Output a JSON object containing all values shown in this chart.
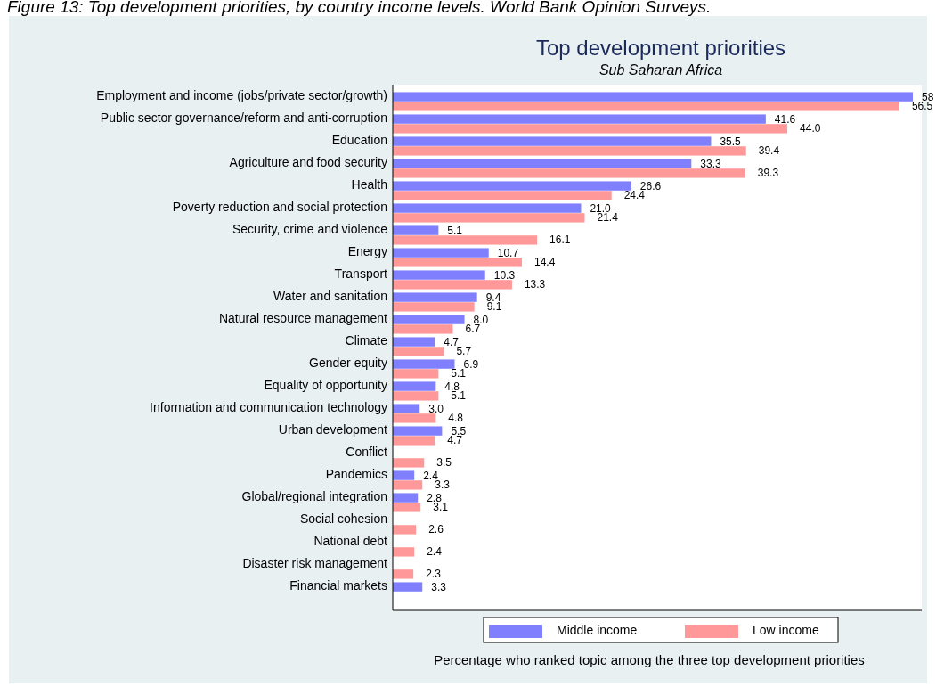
{
  "chart_data": {
    "type": "bar",
    "orientation": "horizontal",
    "title": "Top development priorities",
    "subtitle": "Sub Saharan Africa",
    "xlabel": "Percentage who ranked topic among the three top development priorities",
    "annotations": [
      "Figure 13: Top development priorities, by country income levels. World Bank Opinion Surveys."
    ],
    "legend": "bottom",
    "grid": false,
    "categories": [
      "Employment and income (jobs/private sector/growth)",
      "Public sector governance/reform and anti-corruption",
      "Education",
      "Agriculture and food security",
      "Health",
      "Poverty reduction and social protection",
      "Security, crime and violence",
      "Energy",
      "Transport",
      "Water and sanitation",
      "Natural resource management",
      "Climate",
      "Gender equity",
      "Equality of opportunity",
      "Information and communication technology",
      "Urban development",
      "Conflict",
      "Pandemics",
      "Global/regional integration",
      "Social cohesion",
      "National debt",
      "Disaster risk management",
      "Financial markets"
    ],
    "series": [
      {
        "name": "Middle income",
        "color": "#8080ff",
        "values": [
          58,
          41.6,
          35.5,
          33.3,
          26.6,
          21.0,
          5.1,
          10.7,
          10.3,
          9.4,
          8.0,
          4.7,
          6.9,
          4.8,
          3.0,
          5.5,
          null,
          2.4,
          2.8,
          null,
          null,
          null,
          3.3
        ],
        "value_labels": [
          "58",
          "41.6",
          "35.5",
          "33.3",
          "26.6",
          "21.0",
          "5.1",
          "10.7",
          "10.3",
          "9.4",
          "8.0",
          "4.7",
          "6.9",
          "4.8",
          "3.0",
          "5.5",
          null,
          "2.4",
          "2.8",
          null,
          null,
          null,
          "3.3"
        ]
      },
      {
        "name": "Low income",
        "color": "#ff9999",
        "values": [
          56.5,
          44.0,
          39.4,
          39.3,
          24.4,
          21.4,
          16.1,
          14.4,
          13.3,
          9.1,
          6.7,
          5.7,
          5.1,
          5.1,
          4.8,
          4.7,
          3.5,
          3.3,
          3.1,
          2.6,
          2.4,
          2.3,
          null
        ],
        "value_labels": [
          "56.5",
          "44.0",
          "39.4",
          "39.3",
          "24.4",
          "21.4",
          "16.1",
          "14.4",
          "13.3",
          "9.1",
          "6.7",
          "5.7",
          "5.1",
          "5.1",
          "4.8",
          "4.7",
          "3.5",
          "3.3",
          "3.1",
          "2.6",
          "2.4",
          "2.3",
          null
        ]
      }
    ]
  }
}
